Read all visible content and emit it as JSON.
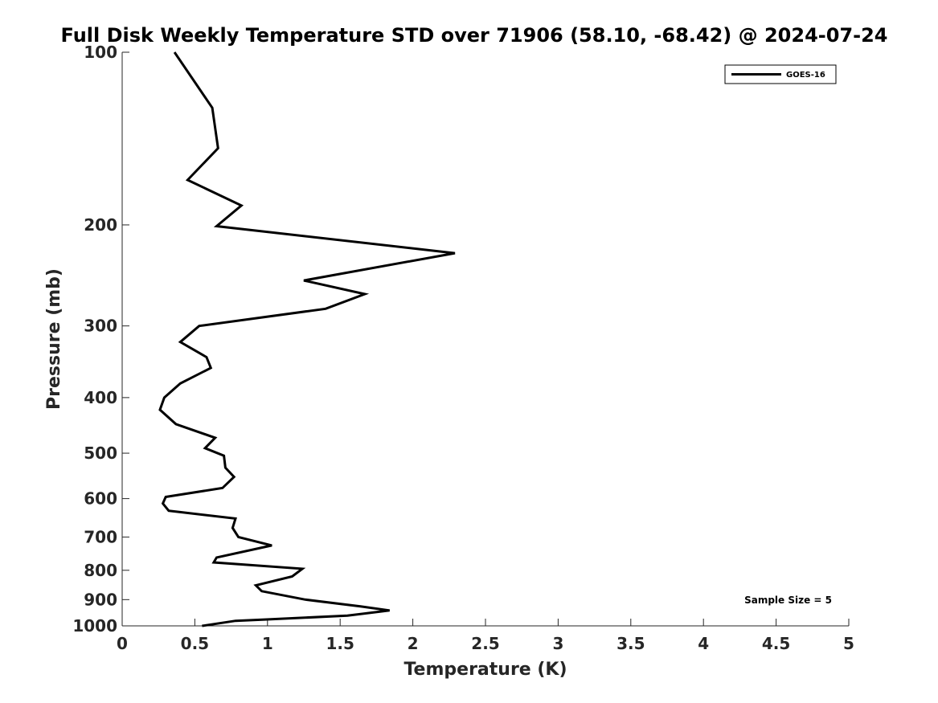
{
  "chart_data": {
    "type": "line",
    "title": "Full Disk Weekly Temperature STD over 71906 (58.10, -68.42) @ 2024-07-24",
    "xlabel": "Temperature (K)",
    "ylabel": "Pressure (mb)",
    "xlim": [
      0,
      5
    ],
    "ylim": [
      100,
      1000
    ],
    "yscale": "log",
    "y_reversed": true,
    "xticks": [
      "0",
      "0.5",
      "1",
      "1.5",
      "2",
      "2.5",
      "3",
      "3.5",
      "4",
      "4.5",
      "5"
    ],
    "yticks": [
      "100",
      "200",
      "300",
      "400",
      "500",
      "600",
      "700",
      "800",
      "900",
      "1000"
    ],
    "grid": false,
    "legend_position": "top-right",
    "series": [
      {
        "name": "GOES-16",
        "color": "#000000",
        "points": [
          [
            0.36,
            100
          ],
          [
            0.62,
            125
          ],
          [
            0.66,
            147
          ],
          [
            0.45,
            167
          ],
          [
            0.82,
            185
          ],
          [
            0.65,
            201
          ],
          [
            2.29,
            224
          ],
          [
            1.25,
            250
          ],
          [
            1.67,
            264
          ],
          [
            1.4,
            280
          ],
          [
            0.53,
            300
          ],
          [
            0.4,
            320
          ],
          [
            0.58,
            340
          ],
          [
            0.61,
            355
          ],
          [
            0.4,
            378
          ],
          [
            0.29,
            400
          ],
          [
            0.26,
            420
          ],
          [
            0.37,
            445
          ],
          [
            0.64,
            470
          ],
          [
            0.57,
            490
          ],
          [
            0.7,
            505
          ],
          [
            0.71,
            530
          ],
          [
            0.77,
            550
          ],
          [
            0.69,
            575
          ],
          [
            0.3,
            596
          ],
          [
            0.28,
            612
          ],
          [
            0.32,
            630
          ],
          [
            0.78,
            650
          ],
          [
            0.76,
            675
          ],
          [
            0.8,
            700
          ],
          [
            1.03,
            724
          ],
          [
            0.65,
            760
          ],
          [
            0.63,
            775
          ],
          [
            1.24,
            795
          ],
          [
            1.17,
            820
          ],
          [
            0.92,
            850
          ],
          [
            0.96,
            870
          ],
          [
            1.26,
            900
          ],
          [
            1.64,
            925
          ],
          [
            1.84,
            940
          ],
          [
            1.55,
            960
          ],
          [
            0.98,
            975
          ],
          [
            0.78,
            980
          ],
          [
            0.55,
            1000
          ]
        ]
      }
    ],
    "annotations": [
      {
        "text": "Sample Size = 5",
        "position": "bottom-right"
      }
    ]
  }
}
